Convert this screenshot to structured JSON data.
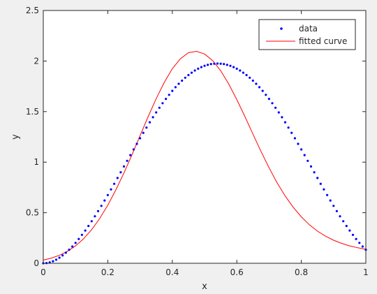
{
  "chart_data": {
    "type": "scatter",
    "xlabel": "x",
    "ylabel": "y",
    "xlim": [
      0,
      1
    ],
    "ylim": [
      0,
      2.5
    ],
    "xticks": [
      0,
      0.2,
      0.4,
      0.6,
      0.8,
      1
    ],
    "yticks": [
      0,
      0.5,
      1,
      1.5,
      2,
      2.5
    ],
    "xtick_labels": [
      "0",
      "0.2",
      "0.4",
      "0.6",
      "0.8",
      "1"
    ],
    "ytick_labels": [
      "0",
      "0.5",
      "1",
      "1.5",
      "2",
      "2.5"
    ],
    "grid": false,
    "legend_position": "top-right",
    "series": [
      {
        "name": "data",
        "kind": "points",
        "color": "#0000ff",
        "x": [
          0,
          0.01,
          0.02,
          0.03,
          0.04,
          0.05,
          0.06,
          0.07,
          0.08,
          0.09,
          0.1,
          0.11,
          0.12,
          0.13,
          0.14,
          0.15,
          0.16,
          0.17,
          0.18,
          0.19,
          0.2,
          0.21,
          0.22,
          0.23,
          0.24,
          0.25,
          0.26,
          0.27,
          0.28,
          0.29,
          0.3,
          0.31,
          0.32,
          0.33,
          0.34,
          0.35,
          0.36,
          0.37,
          0.38,
          0.39,
          0.4,
          0.41,
          0.42,
          0.43,
          0.44,
          0.45,
          0.46,
          0.47,
          0.48,
          0.49,
          0.5,
          0.51,
          0.52,
          0.53,
          0.54,
          0.55,
          0.56,
          0.57,
          0.58,
          0.59,
          0.6,
          0.61,
          0.62,
          0.63,
          0.64,
          0.65,
          0.66,
          0.67,
          0.68,
          0.69,
          0.7,
          0.71,
          0.72,
          0.73,
          0.74,
          0.75,
          0.76,
          0.77,
          0.78,
          0.79,
          0.8,
          0.81,
          0.82,
          0.83,
          0.84,
          0.85,
          0.86,
          0.87,
          0.88,
          0.89,
          0.9,
          0.91,
          0.92,
          0.93,
          0.94,
          0.95,
          0.96,
          0.97,
          0.98,
          0.99,
          1
        ],
        "y": [
          0,
          0.002,
          0.009,
          0.02,
          0.035,
          0.055,
          0.078,
          0.104,
          0.134,
          0.166,
          0.202,
          0.24,
          0.281,
          0.324,
          0.369,
          0.416,
          0.465,
          0.516,
          0.568,
          0.621,
          0.675,
          0.731,
          0.786,
          0.843,
          0.9,
          0.957,
          1.013,
          1.07,
          1.126,
          1.181,
          1.236,
          1.29,
          1.342,
          1.394,
          1.444,
          1.492,
          1.538,
          1.583,
          1.626,
          1.666,
          1.705,
          1.741,
          1.775,
          1.806,
          1.835,
          1.861,
          1.885,
          1.906,
          1.924,
          1.94,
          1.953,
          1.962,
          1.97,
          1.974,
          1.975,
          1.974,
          1.97,
          1.962,
          1.953,
          1.94,
          1.924,
          1.906,
          1.885,
          1.861,
          1.835,
          1.806,
          1.775,
          1.741,
          1.705,
          1.666,
          1.626,
          1.583,
          1.538,
          1.492,
          1.444,
          1.394,
          1.342,
          1.29,
          1.236,
          1.181,
          1.126,
          1.07,
          1.013,
          0.957,
          0.9,
          0.843,
          0.786,
          0.731,
          0.675,
          0.621,
          0.568,
          0.516,
          0.465,
          0.416,
          0.369,
          0.324,
          0.281,
          0.24,
          0.202,
          0.166,
          0.134
        ]
      },
      {
        "name": "fitted curve",
        "kind": "line",
        "color": "#ff0000",
        "x": [
          0,
          0.025,
          0.05,
          0.075,
          0.1,
          0.125,
          0.15,
          0.175,
          0.2,
          0.225,
          0.25,
          0.275,
          0.3,
          0.325,
          0.35,
          0.375,
          0.4,
          0.425,
          0.45,
          0.475,
          0.5,
          0.525,
          0.55,
          0.575,
          0.6,
          0.625,
          0.65,
          0.675,
          0.7,
          0.725,
          0.75,
          0.775,
          0.8,
          0.825,
          0.85,
          0.875,
          0.9,
          0.925,
          0.95,
          0.975,
          1
        ],
        "y": [
          0.032,
          0.051,
          0.079,
          0.119,
          0.172,
          0.243,
          0.333,
          0.443,
          0.574,
          0.725,
          0.893,
          1.074,
          1.262,
          1.45,
          1.628,
          1.789,
          1.924,
          2.023,
          2.082,
          2.096,
          2.07,
          2.005,
          1.904,
          1.773,
          1.619,
          1.451,
          1.277,
          1.106,
          0.944,
          0.796,
          0.665,
          0.553,
          0.459,
          0.381,
          0.318,
          0.268,
          0.228,
          0.197,
          0.172,
          0.153,
          0.138
        ]
      }
    ]
  }
}
